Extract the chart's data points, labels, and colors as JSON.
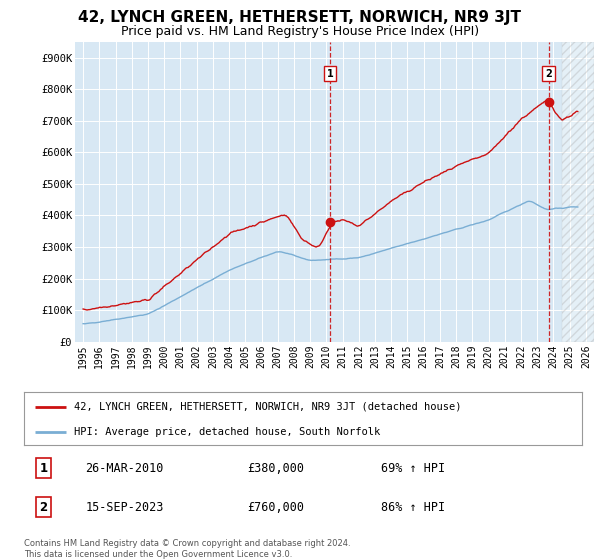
{
  "title": "42, LYNCH GREEN, HETHERSETT, NORWICH, NR9 3JT",
  "subtitle": "Price paid vs. HM Land Registry's House Price Index (HPI)",
  "title_fontsize": 11,
  "subtitle_fontsize": 9,
  "ylim": [
    0,
    950000
  ],
  "yticks": [
    0,
    100000,
    200000,
    300000,
    400000,
    500000,
    600000,
    700000,
    800000,
    900000
  ],
  "ytick_labels": [
    "£0",
    "£100K",
    "£200K",
    "£300K",
    "£400K",
    "£500K",
    "£600K",
    "£700K",
    "£800K",
    "£900K"
  ],
  "hpi_color": "#7aaed4",
  "price_color": "#cc1111",
  "vline_color": "#cc1111",
  "background_color": "#ffffff",
  "plot_bg_color": "#d8e8f4",
  "grid_color": "#ffffff",
  "annotation1": {
    "label": "1",
    "date_x": 2010.23,
    "price": 380000,
    "text_date": "26-MAR-2010",
    "text_price": "£380,000",
    "text_pct": "69% ↑ HPI"
  },
  "annotation2": {
    "label": "2",
    "date_x": 2023.71,
    "price": 760000,
    "text_date": "15-SEP-2023",
    "text_price": "£760,000",
    "text_pct": "86% ↑ HPI"
  },
  "legend1": "42, LYNCH GREEN, HETHERSETT, NORWICH, NR9 3JT (detached house)",
  "legend2": "HPI: Average price, detached house, South Norfolk",
  "footer": "Contains HM Land Registry data © Crown copyright and database right 2024.\nThis data is licensed under the Open Government Licence v3.0.",
  "xlim_start": 1994.5,
  "xlim_end": 2026.5,
  "hatch_region_start": 2024.5,
  "hatch_region_end": 2026.5
}
